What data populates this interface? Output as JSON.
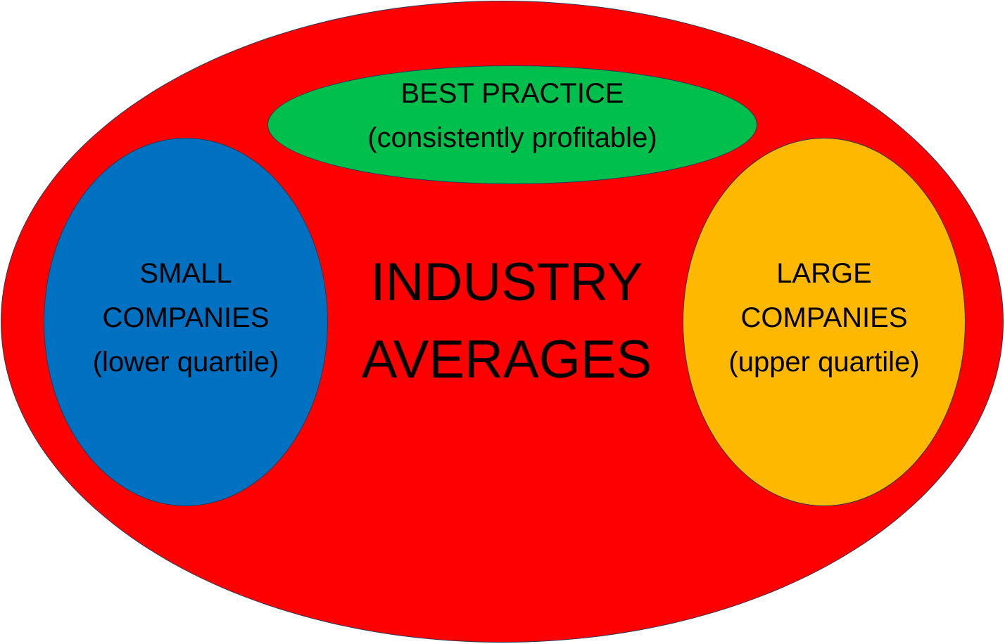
{
  "diagram": {
    "outer": {
      "label_lines": [
        "INDUSTRY",
        "AVERAGES"
      ],
      "color": "#ff0000"
    },
    "best_practice": {
      "label_lines": [
        "BEST PRACTICE",
        "(consistently profitable)"
      ],
      "color": "#00bf4c"
    },
    "small_companies": {
      "label_lines": [
        "SMALL",
        "COMPANIES",
        "(lower quartile)"
      ],
      "color": "#0070c0"
    },
    "large_companies": {
      "label_lines": [
        "LARGE",
        "COMPANIES",
        "(upper quartile)"
      ],
      "color": "#ffb800"
    },
    "border_color": "#2b3a55",
    "text_color": "#000000"
  }
}
